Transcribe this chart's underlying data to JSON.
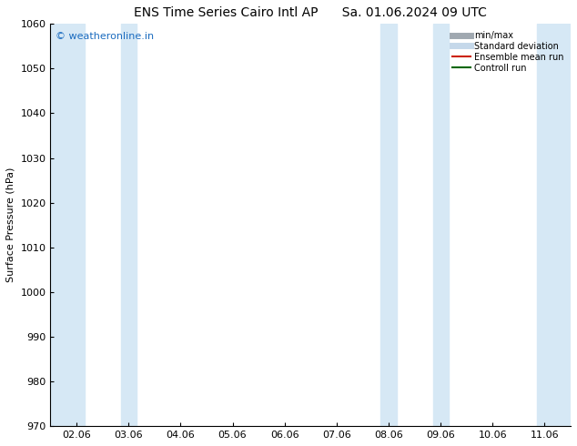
{
  "title_left": "ENS Time Series Cairo Intl AP",
  "title_right": "Sa. 01.06.2024 09 UTC",
  "ylabel": "Surface Pressure (hPa)",
  "ylim": [
    970,
    1060
  ],
  "yticks": [
    970,
    980,
    990,
    1000,
    1010,
    1020,
    1030,
    1040,
    1050,
    1060
  ],
  "xtick_labels": [
    "02.06",
    "03.06",
    "04.06",
    "05.06",
    "06.06",
    "07.06",
    "08.06",
    "09.06",
    "10.06",
    "11.06"
  ],
  "xtick_positions": [
    0,
    1,
    2,
    3,
    4,
    5,
    6,
    7,
    8,
    9
  ],
  "xlim": [
    -0.5,
    9.5
  ],
  "shaded_bands": [
    {
      "x_start": -0.5,
      "x_end": 0.15
    },
    {
      "x_start": 0.85,
      "x_end": 1.15
    },
    {
      "x_start": 5.85,
      "x_end": 6.15
    },
    {
      "x_start": 6.85,
      "x_end": 7.15
    },
    {
      "x_start": 8.85,
      "x_end": 9.5
    }
  ],
  "shade_color": "#d6e8f5",
  "watermark_text": "© weatheronline.in",
  "watermark_color": "#1a6bbf",
  "background_color": "#ffffff",
  "legend_items": [
    {
      "label": "min/max",
      "color": "#a0a8b0",
      "lw": 5,
      "style": "solid"
    },
    {
      "label": "Standard deviation",
      "color": "#c5d8ea",
      "lw": 5,
      "style": "solid"
    },
    {
      "label": "Ensemble mean run",
      "color": "#cc2200",
      "lw": 1.5,
      "style": "solid"
    },
    {
      "label": "Controll run",
      "color": "#006600",
      "lw": 1.5,
      "style": "solid"
    }
  ],
  "title_fontsize": 10,
  "axis_fontsize": 8,
  "tick_fontsize": 8
}
